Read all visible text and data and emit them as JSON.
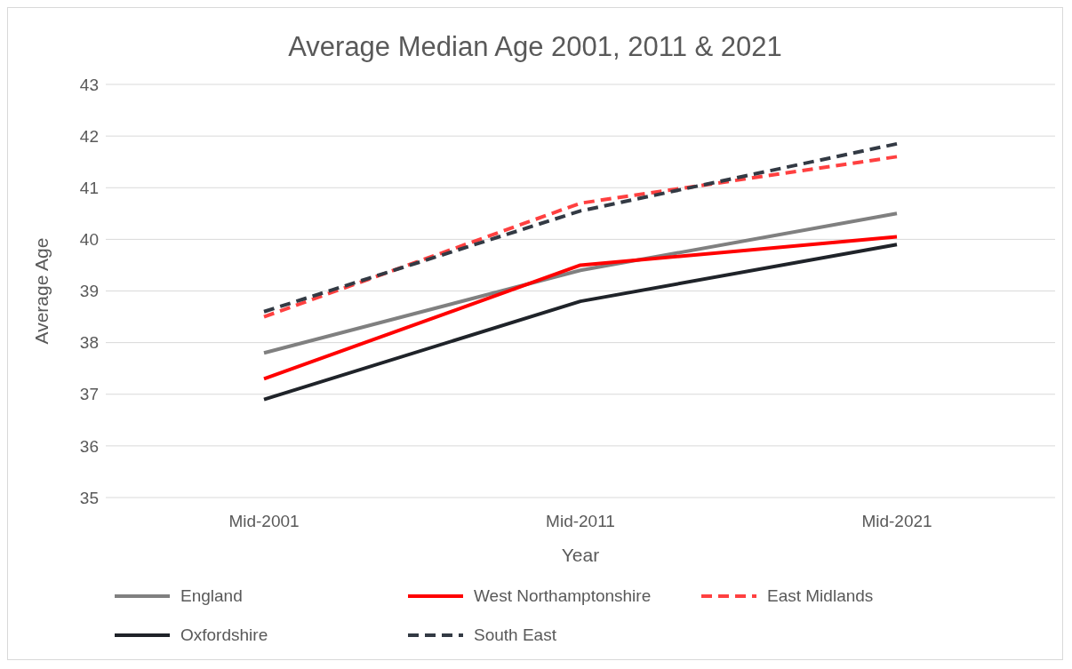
{
  "chart_data": {
    "type": "line",
    "title": "Average Median Age 2001, 2011 & 2021",
    "xlabel": "Year",
    "ylabel": "Average Age",
    "categories": [
      "Mid-2001",
      "Mid-2011",
      "Mid-2021"
    ],
    "ylim": [
      35,
      43
    ],
    "yticks": [
      35,
      36,
      37,
      38,
      39,
      40,
      41,
      42,
      43
    ],
    "grid": "y",
    "legend": "bottom",
    "marker": "none",
    "series": [
      {
        "name": "England",
        "color": "#808080",
        "line_style": "solid",
        "values": [
          37.8,
          39.4,
          40.5
        ]
      },
      {
        "name": "West Northamptonshire",
        "color": "#ff0000",
        "line_style": "solid",
        "values": [
          37.3,
          39.5,
          40.05
        ]
      },
      {
        "name": "East Midlands",
        "color": "#ff4040",
        "line_style": "dashed",
        "values": [
          38.5,
          40.7,
          41.6
        ]
      },
      {
        "name": "Oxfordshire",
        "color": "#1f2329",
        "line_style": "solid",
        "values": [
          36.9,
          38.8,
          39.9
        ]
      },
      {
        "name": "South East",
        "color": "#333a44",
        "line_style": "dashed",
        "values": [
          38.6,
          40.55,
          41.85
        ]
      }
    ]
  }
}
